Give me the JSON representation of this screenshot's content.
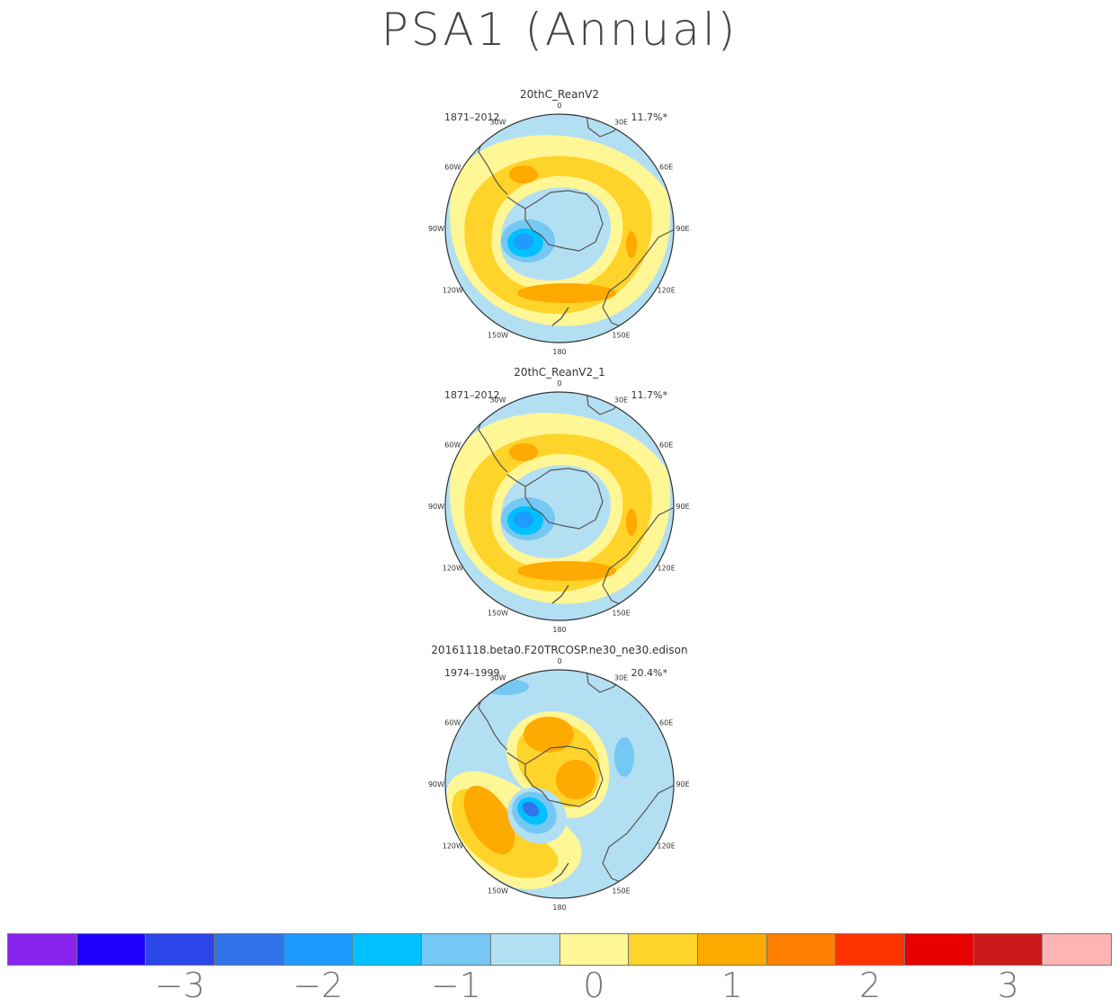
{
  "title": "PSA1  (Annual)",
  "panels": [
    {
      "name": "20thC_ReanV2",
      "years": "1871–2012",
      "variance": "11.7%*",
      "pattern": "obs"
    },
    {
      "name": "20thC_ReanV2_1",
      "years": "1871–2012",
      "variance": "11.7%*",
      "pattern": "obs"
    },
    {
      "name": "20161118.beta0.F20TRCOSP.ne30_ne30.edison",
      "years": "1974–1999",
      "variance": "20.4%*",
      "pattern": "model"
    }
  ],
  "lon_labels": {
    "l0": "0",
    "l30e": "30E",
    "l60e": "60E",
    "l90e": "90E",
    "l120e": "120E",
    "l150e": "150E",
    "l180": "180",
    "l150w": "150W",
    "l120w": "120W",
    "l90w": "90W",
    "l60w": "60W",
    "l30w": "30W"
  },
  "colorbar": {
    "colors": [
      "#8a22f0",
      "#1f00ff",
      "#2b46e8",
      "#3173e8",
      "#1e9bff",
      "#00c0ff",
      "#75c8f3",
      "#b3dff2",
      "#fff696",
      "#ffd42a",
      "#ffaa00",
      "#ff7f00",
      "#ff3300",
      "#e60000",
      "#cc1a1a",
      "#ffb3b3"
    ],
    "labels": [
      "−3",
      "−2",
      "−1",
      "0",
      "1",
      "2",
      "3"
    ]
  }
}
